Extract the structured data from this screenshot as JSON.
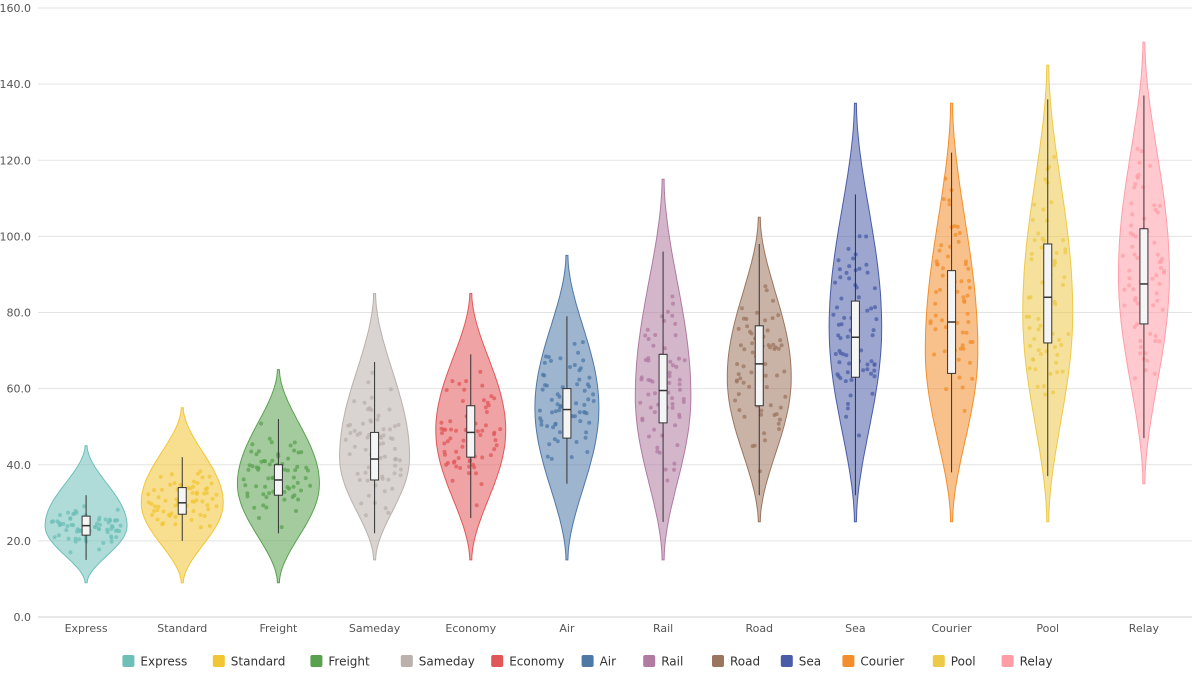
{
  "chart_data": {
    "type": "violin",
    "title": "",
    "xlabel": "",
    "ylabel": "",
    "ylim": [
      0,
      160
    ],
    "y_ticks": [
      "0.0",
      "20.0",
      "40.0",
      "60.0",
      "80.0",
      "100.0",
      "120.0",
      "140.0",
      "160.0"
    ],
    "grid": true,
    "legend_position": "bottom",
    "categories": [
      "Express",
      "Standard",
      "Freight",
      "Sameday",
      "Economy",
      "Air",
      "Rail",
      "Road",
      "Sea",
      "Courier",
      "Pool",
      "Relay"
    ],
    "series": [
      {
        "name": "Express",
        "color": "#6dbfb8",
        "min": 9,
        "max": 45,
        "whisker_low": 15,
        "q1": 21.5,
        "median": 24,
        "q3": 26.5,
        "whisker_high": 32,
        "mode": 24
      },
      {
        "name": "Standard",
        "color": "#f2c535",
        "min": 9,
        "max": 55,
        "whisker_low": 20,
        "q1": 27,
        "median": 30,
        "q3": 34,
        "whisker_high": 42,
        "mode": 30
      },
      {
        "name": "Freight",
        "color": "#59a14f",
        "min": 9,
        "max": 65,
        "whisker_low": 22,
        "q1": 32,
        "median": 36,
        "q3": 40,
        "whisker_high": 52,
        "mode": 35
      },
      {
        "name": "Sameday",
        "color": "#bab0ac",
        "min": 15,
        "max": 85,
        "whisker_low": 22,
        "q1": 36,
        "median": 41.5,
        "q3": 48.5,
        "whisker_high": 67,
        "mode": 42
      },
      {
        "name": "Economy",
        "color": "#e15759",
        "min": 15,
        "max": 85,
        "whisker_low": 26,
        "q1": 42,
        "median": 48.5,
        "q3": 55.5,
        "whisker_high": 69,
        "mode": 49
      },
      {
        "name": "Air",
        "color": "#4e79a7",
        "min": 15,
        "max": 95,
        "whisker_low": 35,
        "q1": 47,
        "median": 54.5,
        "q3": 60,
        "whisker_high": 79,
        "mode": 55
      },
      {
        "name": "Rail",
        "color": "#b07aa1",
        "min": 15,
        "max": 115,
        "whisker_low": 25,
        "q1": 51,
        "median": 59.5,
        "q3": 69,
        "whisker_high": 96,
        "mode": 58
      },
      {
        "name": "Road",
        "color": "#9c755f",
        "min": 25,
        "max": 105,
        "whisker_low": 32,
        "q1": 55.5,
        "median": 66.5,
        "q3": 76.5,
        "whisker_high": 98,
        "mode": 63
      },
      {
        "name": "Sea",
        "color": "#4a5ca8",
        "min": 25,
        "max": 135,
        "whisker_low": 32,
        "q1": 63,
        "median": 73.5,
        "q3": 83,
        "whisker_high": 111,
        "mode": 76
      },
      {
        "name": "Courier",
        "color": "#f28e2b",
        "min": 25,
        "max": 135,
        "whisker_low": 38,
        "q1": 64,
        "median": 77.5,
        "q3": 91,
        "whisker_high": 122,
        "mode": 70
      },
      {
        "name": "Pool",
        "color": "#edc948",
        "min": 25,
        "max": 145,
        "whisker_low": 37,
        "q1": 72,
        "median": 84,
        "q3": 98,
        "whisker_high": 136,
        "mode": 80
      },
      {
        "name": "Relay",
        "color": "#ff9da7",
        "min": 35,
        "max": 151,
        "whisker_low": 47,
        "q1": 77,
        "median": 87.5,
        "q3": 102,
        "whisker_high": 137,
        "mode": 90
      }
    ]
  }
}
